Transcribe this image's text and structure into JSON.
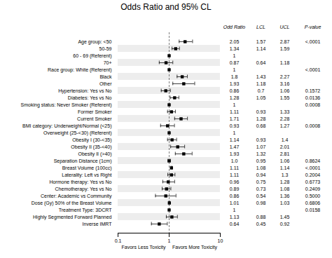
{
  "chart_data": {
    "type": "forest",
    "title": "Odds Ratio and 95% CL",
    "annotations": [
      "Favors Less Toxicity",
      "Favors More Toxicity"
    ],
    "column_headers": [
      "Odd Ratio",
      "LCL",
      "UCL",
      "P-value"
    ],
    "categories": [
      "Age group: <50",
      "50-59",
      "60 - 69 (Referent)",
      "70+",
      "Race group: White (Referent)",
      "Black",
      "Other",
      "Hypertension: Yes vs No",
      "Diabetes: Yes vs No",
      "Smoking status: Never Smoker (Referent)",
      "Former Smoker",
      "Current Smoker",
      "BMI category: Underweight/Normal (<25)",
      "Overweight (25-<30) (Referent)",
      "Obesity I (30-<35)",
      "Obesity II (35-<40)",
      "Obesity II (>40)",
      "Separation Distance (1cm)",
      "Breast Volume (100cc)",
      "Laterality: Left vs Right",
      "Hormone therapy: Yes vs No",
      "Chemotherapy: Yes vs No",
      "Center: Academic vs Community",
      "Dose (Gy) 50% of the Breast Volume",
      "Treatment Type: 3DCRT",
      "Highly Segmented Forward Planned",
      "Inverse IMRT"
    ],
    "values": [
      2.05,
      1.34,
      1,
      0.87,
      1,
      1.8,
      1.93,
      0.86,
      1.28,
      1,
      1.11,
      1.71,
      0.93,
      1,
      1.14,
      1.47,
      1.93,
      1.0,
      1.11,
      1.11,
      0.96,
      0.89,
      0.86,
      1.01,
      1,
      1.13,
      0.64
    ],
    "value_labels": [
      "2.05",
      "1.34",
      "1",
      "0.87",
      "1",
      "1.8",
      "1.93",
      "0.86",
      "1.28",
      "1",
      "1.11",
      "1.71",
      "0.93",
      "1",
      "1.14",
      "1.47",
      "1.93",
      "1.0",
      "1.11",
      "1.11",
      "0.96",
      "0.89",
      "0.86",
      "1.01",
      "1",
      "1.13",
      "0.64"
    ],
    "lower": [
      1.57,
      1.14,
      null,
      0.64,
      null,
      1.43,
      1.18,
      0.7,
      1.05,
      null,
      0.93,
      1.28,
      0.68,
      null,
      0.93,
      1.07,
      1.32,
      0.95,
      1.08,
      0.94,
      0.75,
      0.73,
      0.54,
      0.98,
      null,
      0.88,
      0.45
    ],
    "upper": [
      2.87,
      1.59,
      null,
      1.18,
      null,
      2.27,
      3.16,
      1.06,
      1.55,
      null,
      1.33,
      2.28,
      1.27,
      null,
      1.4,
      2.01,
      2.81,
      1.06,
      1.14,
      1.3,
      1.28,
      1.08,
      1.36,
      1.03,
      null,
      1.45,
      0.92
    ],
    "p_values": [
      "<.0001",
      null,
      null,
      null,
      "<.0001",
      null,
      null,
      "0.1572",
      "0.0136",
      "0.0008",
      null,
      null,
      "0.0008",
      null,
      null,
      null,
      null,
      "0.8624",
      "<.0001",
      "0.2004",
      "0.6773",
      "0.2409",
      "0.5000",
      "0.6806",
      "0.0158",
      null,
      null
    ],
    "reference_line": 1,
    "log": "x",
    "xlim": [
      0.1,
      10
    ],
    "xticks": [
      0.1,
      1,
      10
    ],
    "grid": false
  }
}
